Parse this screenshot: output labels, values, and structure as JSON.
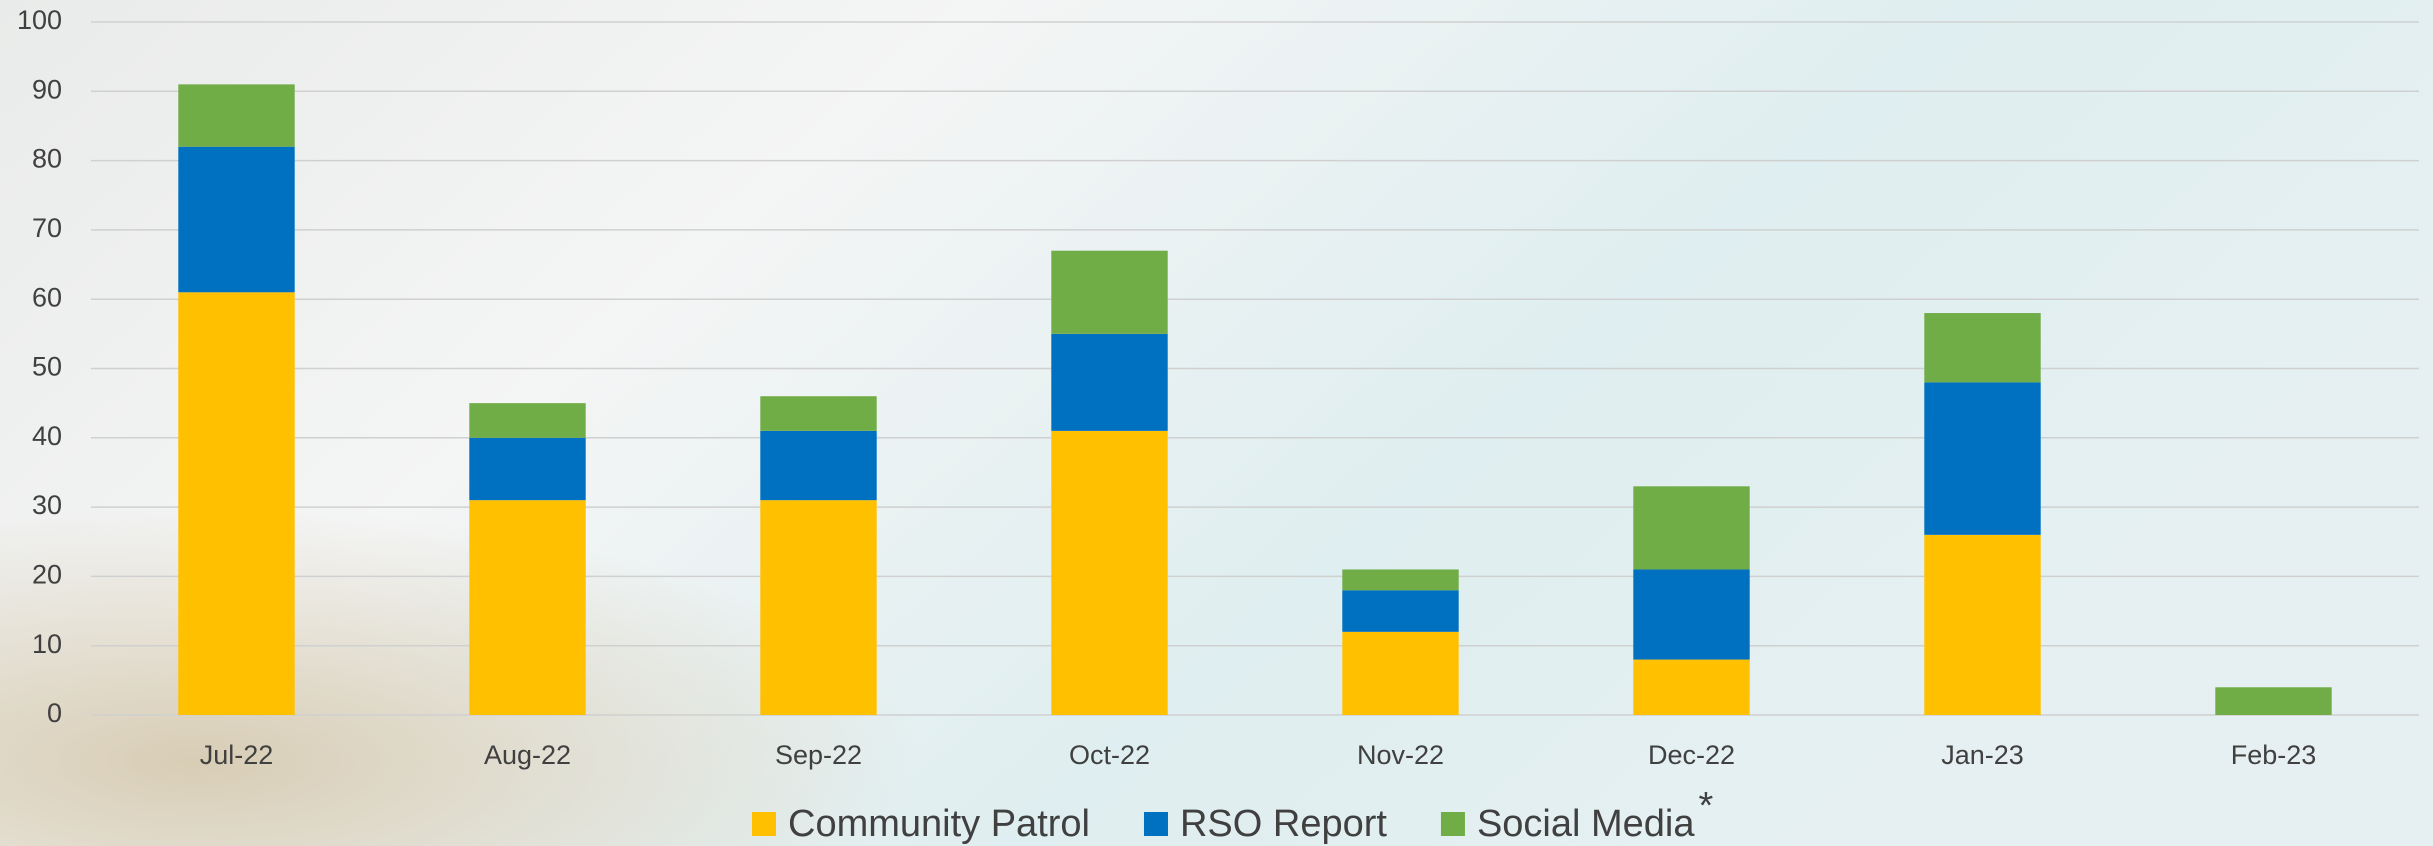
{
  "chart_data": {
    "type": "stacked_bar",
    "categories": [
      "Jul-22",
      "Aug-22",
      "Sep-22",
      "Oct-22",
      "Nov-22",
      "Dec-22",
      "Jan-23",
      "Feb-23"
    ],
    "series": [
      {
        "name": "Community Patrol",
        "color": "#ffc000",
        "values": [
          61,
          31,
          31,
          41,
          12,
          8,
          26,
          0
        ]
      },
      {
        "name": "RSO Report",
        "color": "#0070c0",
        "values": [
          21,
          9,
          10,
          14,
          6,
          13,
          22,
          0
        ]
      },
      {
        "name": "Social Media",
        "color": "#70ad47",
        "values": [
          9,
          5,
          5,
          12,
          3,
          12,
          10,
          4
        ]
      }
    ],
    "annotation": "*",
    "ylim": [
      0,
      100
    ],
    "yticks": [
      0,
      10,
      20,
      30,
      40,
      50,
      60,
      70,
      80,
      90,
      100
    ],
    "grid": true,
    "legend": "bottom"
  }
}
